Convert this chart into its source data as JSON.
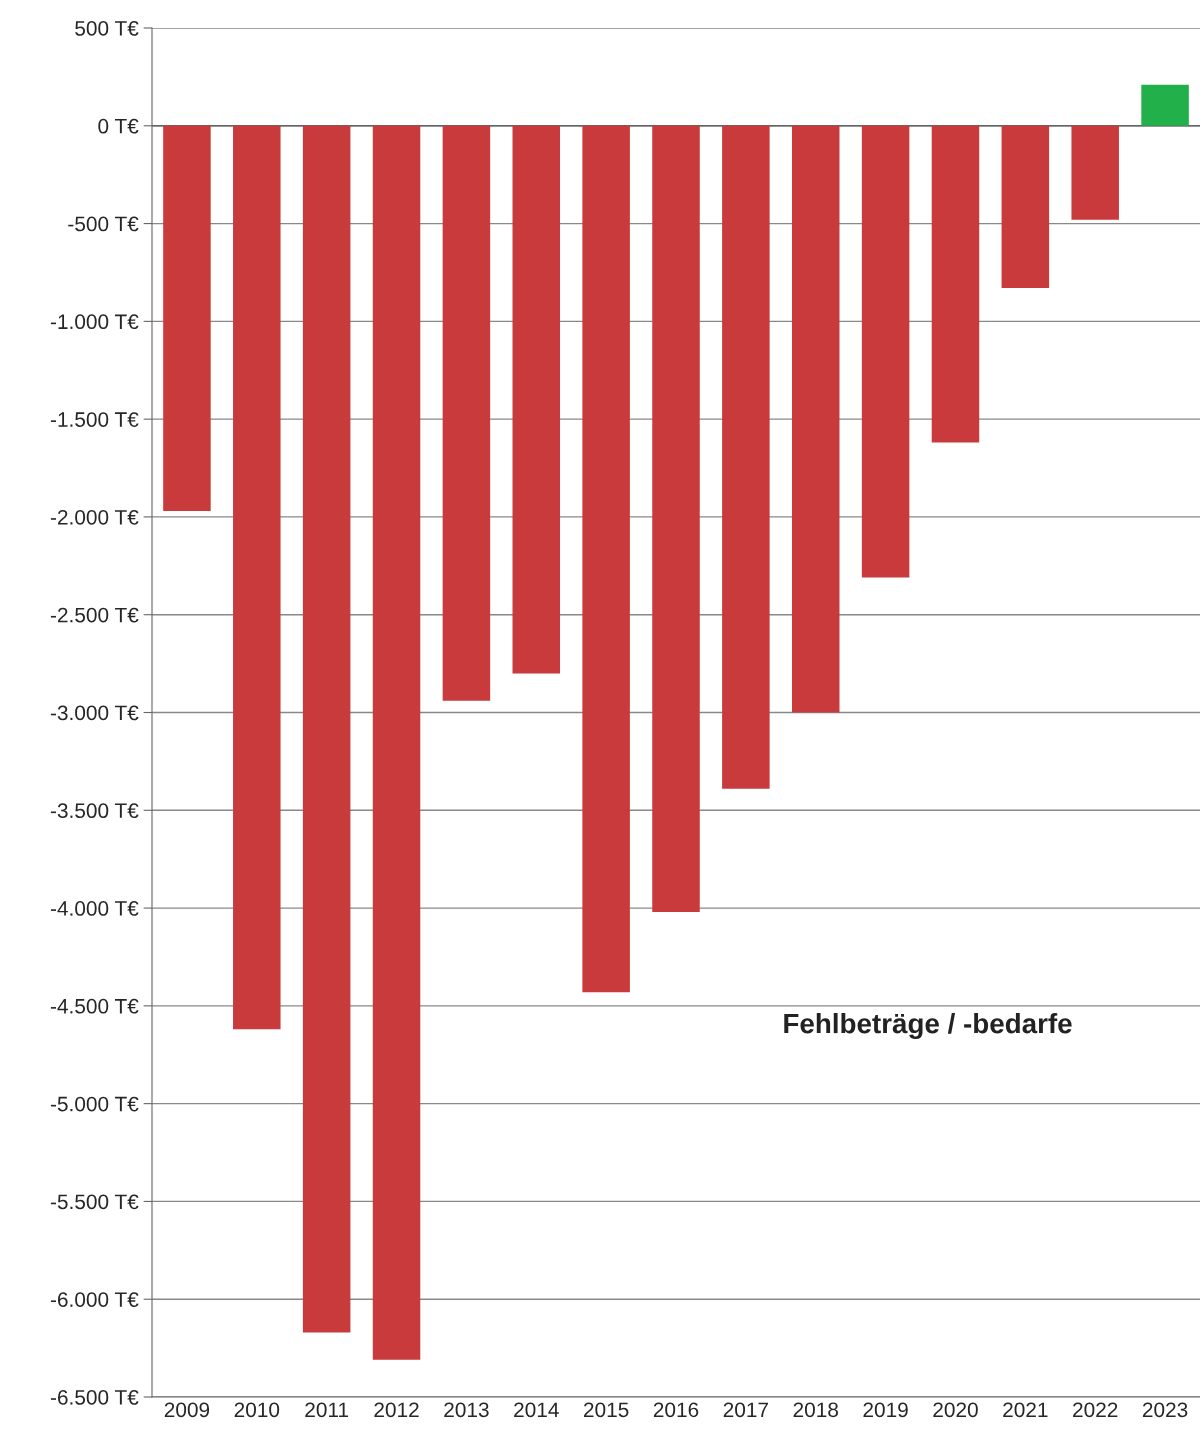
{
  "chart_data": {
    "type": "bar",
    "categories": [
      "2009",
      "2010",
      "2011",
      "2012",
      "2013",
      "2014",
      "2015",
      "2016",
      "2017",
      "2018",
      "2019",
      "2020",
      "2021",
      "2022",
      "2023"
    ],
    "values": [
      -1970,
      -4620,
      -6170,
      -6310,
      -2940,
      -2800,
      -4430,
      -4020,
      -3390,
      -3000,
      -2310,
      -1620,
      -830,
      -480,
      210
    ],
    "colors": [
      "#c93a3c",
      "#c93a3c",
      "#c93a3c",
      "#c93a3c",
      "#c93a3c",
      "#c93a3c",
      "#c93a3c",
      "#c93a3c",
      "#c93a3c",
      "#c93a3c",
      "#c93a3c",
      "#c93a3c",
      "#c93a3c",
      "#c93a3c",
      "#22b04a"
    ],
    "ylim": [
      -6500,
      500
    ],
    "yticks": [
      {
        "value": 500,
        "label": "500 T€"
      },
      {
        "value": 0,
        "label": "0 T€"
      },
      {
        "value": -500,
        "label": "-500 T€"
      },
      {
        "value": -1000,
        "label": "-1.000 T€"
      },
      {
        "value": -1500,
        "label": "-1.500 T€"
      },
      {
        "value": -2000,
        "label": "-2.000 T€"
      },
      {
        "value": -2500,
        "label": "-2.500 T€"
      },
      {
        "value": -3000,
        "label": "-3.000 T€"
      },
      {
        "value": -3500,
        "label": "-3.500 T€"
      },
      {
        "value": -4000,
        "label": "-4.000 T€"
      },
      {
        "value": -4500,
        "label": "-4.500 T€"
      },
      {
        "value": -5000,
        "label": "-5.000 T€"
      },
      {
        "value": -5500,
        "label": "-5.500 T€"
      },
      {
        "value": -6000,
        "label": "-6.000 T€"
      },
      {
        "value": -6500,
        "label": "-6.500 T€"
      }
    ],
    "grid": "y",
    "annotations": [
      "Fehlbeträge / -bedarfe"
    ]
  }
}
